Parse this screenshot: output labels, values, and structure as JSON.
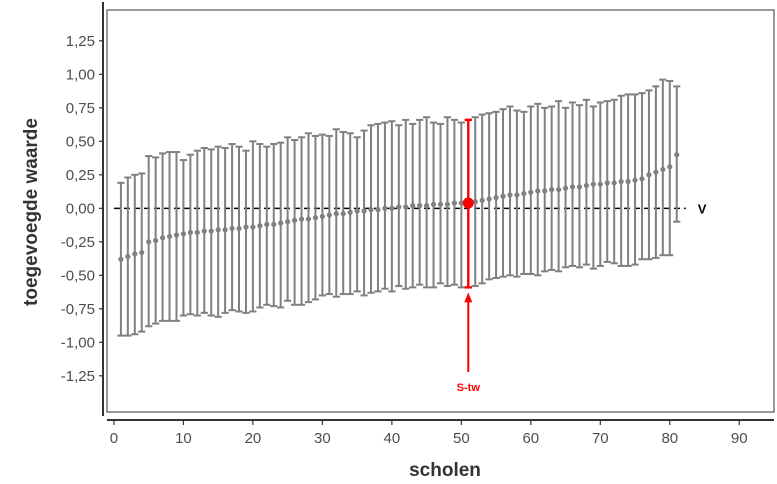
{
  "chart_data": {
    "type": "errorbar",
    "xlabel": "scholen",
    "ylabel": "toegevoegde waarde",
    "xlim": [
      -1,
      95
    ],
    "ylim": [
      -1.52,
      1.48
    ],
    "x_ticks": [
      0,
      10,
      20,
      30,
      40,
      50,
      60,
      70,
      80,
      90
    ],
    "x_tick_labels": [
      "0",
      "10",
      "20",
      "30",
      "40",
      "50",
      "60",
      "70",
      "80",
      "90"
    ],
    "y_ticks": [
      1.25,
      1.0,
      0.75,
      0.5,
      0.25,
      0.0,
      -0.25,
      -0.5,
      -0.75,
      -1.0,
      -1.25
    ],
    "y_tick_labels": [
      "1,25",
      "1,00",
      "0,75",
      "0,50",
      "0,25",
      "0,00",
      "-0,25",
      "-0,50",
      "-0,75",
      "-1,00",
      "-1,25"
    ],
    "grid": false,
    "reference_line": {
      "y": 0,
      "label": "V",
      "style": "dashed"
    },
    "highlight": {
      "x": 51,
      "estimate": 0.04,
      "lower": -0.59,
      "upper": 0.66,
      "label": "S-tw",
      "color": "#ff0000"
    },
    "series_color": "#808080",
    "series": [
      {
        "x": [
          1,
          2,
          3,
          4,
          5,
          6,
          7,
          8,
          9,
          10,
          11,
          12,
          13,
          14,
          15,
          16,
          17,
          18,
          19,
          20,
          21,
          22,
          23,
          24,
          25,
          26,
          27,
          28,
          29,
          30,
          31,
          32,
          33,
          34,
          35,
          36,
          37,
          38,
          39,
          40,
          41,
          42,
          43,
          44,
          45,
          46,
          47,
          48,
          49,
          50,
          51,
          52,
          53,
          54,
          55,
          56,
          57,
          58,
          59,
          60,
          61,
          62,
          63,
          64,
          65,
          66,
          67,
          68,
          69,
          70,
          71,
          72,
          73,
          74,
          75,
          76,
          77,
          78,
          79,
          80,
          81
        ],
        "estimate": [
          -0.38,
          -0.36,
          -0.34,
          -0.33,
          -0.25,
          -0.24,
          -0.22,
          -0.21,
          -0.2,
          -0.19,
          -0.18,
          -0.18,
          -0.17,
          -0.17,
          -0.16,
          -0.16,
          -0.15,
          -0.15,
          -0.14,
          -0.14,
          -0.13,
          -0.12,
          -0.12,
          -0.11,
          -0.1,
          -0.09,
          -0.08,
          -0.08,
          -0.07,
          -0.06,
          -0.05,
          -0.04,
          -0.04,
          -0.03,
          -0.02,
          -0.02,
          -0.01,
          -0.01,
          0.0,
          0.0,
          0.01,
          0.01,
          0.02,
          0.02,
          0.02,
          0.03,
          0.03,
          0.03,
          0.04,
          0.04,
          0.04,
          0.05,
          0.06,
          0.07,
          0.08,
          0.09,
          0.1,
          0.1,
          0.11,
          0.12,
          0.13,
          0.13,
          0.14,
          0.14,
          0.15,
          0.16,
          0.16,
          0.17,
          0.18,
          0.18,
          0.19,
          0.19,
          0.2,
          0.2,
          0.21,
          0.22,
          0.25,
          0.27,
          0.29,
          0.31,
          0.4
        ],
        "lower": [
          -0.95,
          -0.95,
          -0.94,
          -0.92,
          -0.88,
          -0.86,
          -0.84,
          -0.84,
          -0.84,
          -0.8,
          -0.79,
          -0.8,
          -0.78,
          -0.8,
          -0.81,
          -0.78,
          -0.76,
          -0.77,
          -0.78,
          -0.77,
          -0.74,
          -0.72,
          -0.73,
          -0.74,
          -0.69,
          -0.72,
          -0.72,
          -0.7,
          -0.68,
          -0.65,
          -0.64,
          -0.66,
          -0.64,
          -0.64,
          -0.62,
          -0.65,
          -0.63,
          -0.62,
          -0.6,
          -0.62,
          -0.58,
          -0.6,
          -0.59,
          -0.57,
          -0.59,
          -0.59,
          -0.56,
          -0.58,
          -0.57,
          -0.59,
          -0.59,
          -0.58,
          -0.56,
          -0.53,
          -0.52,
          -0.51,
          -0.5,
          -0.51,
          -0.49,
          -0.49,
          -0.5,
          -0.47,
          -0.46,
          -0.47,
          -0.44,
          -0.43,
          -0.44,
          -0.42,
          -0.45,
          -0.43,
          -0.4,
          -0.41,
          -0.43,
          -0.43,
          -0.42,
          -0.38,
          -0.38,
          -0.37,
          -0.35,
          -0.35,
          -0.1
        ],
        "upper": [
          0.19,
          0.23,
          0.25,
          0.26,
          0.39,
          0.38,
          0.41,
          0.42,
          0.42,
          0.36,
          0.4,
          0.43,
          0.45,
          0.44,
          0.46,
          0.45,
          0.48,
          0.46,
          0.43,
          0.5,
          0.48,
          0.46,
          0.48,
          0.49,
          0.53,
          0.51,
          0.53,
          0.56,
          0.54,
          0.55,
          0.54,
          0.59,
          0.57,
          0.56,
          0.53,
          0.58,
          0.62,
          0.63,
          0.64,
          0.65,
          0.62,
          0.66,
          0.63,
          0.66,
          0.68,
          0.64,
          0.63,
          0.68,
          0.66,
          0.64,
          0.66,
          0.68,
          0.7,
          0.71,
          0.72,
          0.74,
          0.76,
          0.73,
          0.72,
          0.76,
          0.78,
          0.75,
          0.76,
          0.8,
          0.75,
          0.79,
          0.77,
          0.81,
          0.76,
          0.79,
          0.8,
          0.81,
          0.84,
          0.85,
          0.85,
          0.86,
          0.88,
          0.91,
          0.96,
          0.95,
          0.91
        ]
      }
    ]
  }
}
